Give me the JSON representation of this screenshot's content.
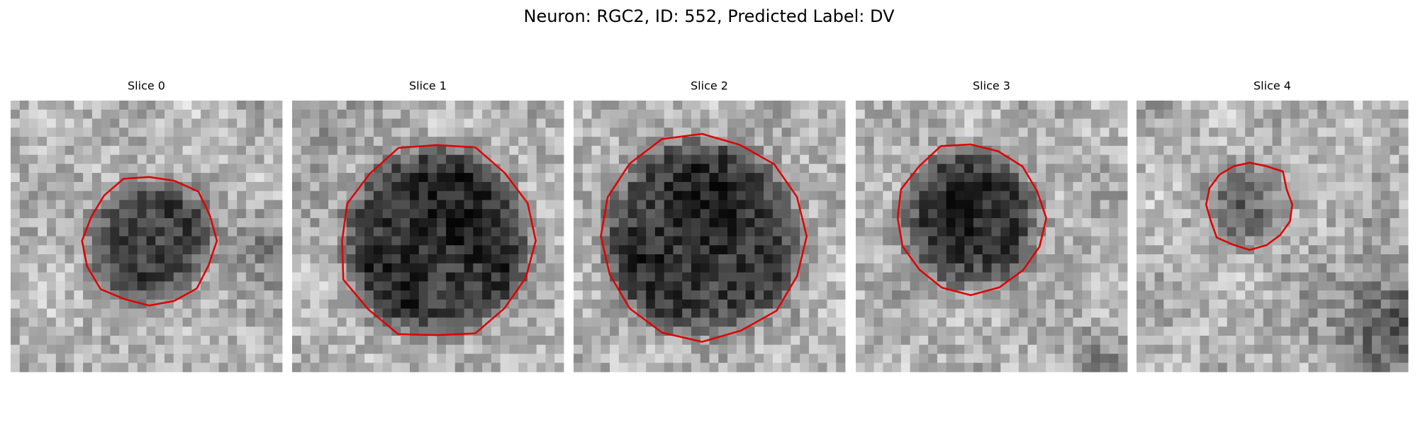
{
  "title": "Neuron: RGC2, ID: 552, Predicted Label: DV",
  "panels": [
    {
      "title": "Slice 0"
    },
    {
      "title": "Slice 1"
    },
    {
      "title": "Slice 2"
    },
    {
      "title": "Slice 3"
    },
    {
      "title": "Slice 4"
    }
  ]
}
